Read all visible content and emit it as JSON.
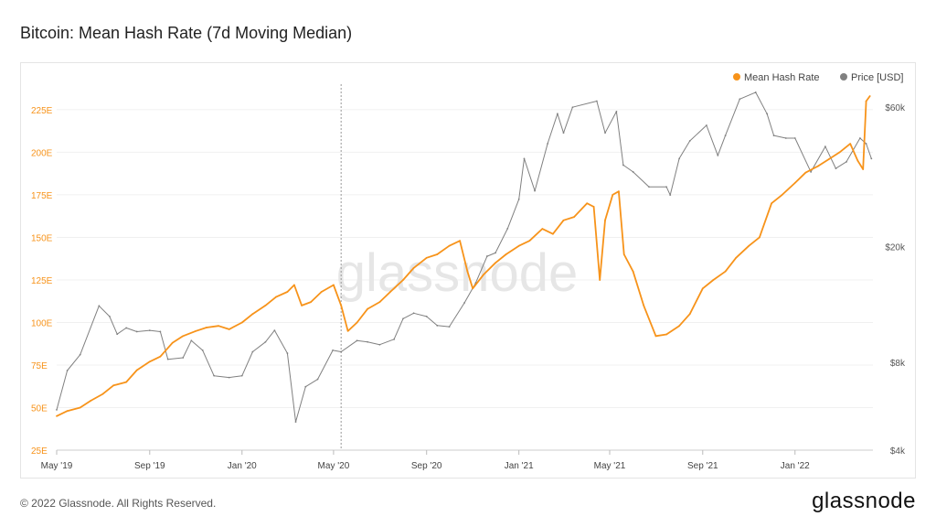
{
  "title": "Bitcoin: Mean Hash Rate (7d Moving Median)",
  "watermark": "glassnode",
  "footer": {
    "copyright": "© 2022 Glassnode. All Rights Reserved.",
    "logo": "glassnode"
  },
  "colors": {
    "hash": "#f7931a",
    "price": "#808080",
    "grid": "#f0f0f0"
  },
  "chart_data": {
    "type": "line",
    "xlabel": "",
    "ylabel": "",
    "x_ticks": [
      "May '19",
      "Sep '19",
      "Jan '20",
      "May '20",
      "Sep '20",
      "Jan '21",
      "May '21",
      "Sep '21",
      "Jan '22"
    ],
    "y_left_ticks": [
      "25E",
      "50E",
      "75E",
      "100E",
      "125E",
      "150E",
      "175E",
      "200E",
      "225E"
    ],
    "y_right_ticks": [
      "$4k",
      "$8k",
      "$20k",
      "$60k"
    ],
    "y_right_scale": "log",
    "ylim_left": [
      25,
      240
    ],
    "ylim_right": [
      4000,
      72000
    ],
    "legend_position": "top-right",
    "annotation_date": "2020-05-11",
    "series": [
      {
        "name": "Mean Hash Rate",
        "axis": "left",
        "points": [
          [
            "2019-05-01",
            45
          ],
          [
            "2019-05-15",
            48
          ],
          [
            "2019-06-01",
            50
          ],
          [
            "2019-06-15",
            54
          ],
          [
            "2019-07-01",
            58
          ],
          [
            "2019-07-15",
            63
          ],
          [
            "2019-08-01",
            65
          ],
          [
            "2019-08-15",
            72
          ],
          [
            "2019-09-01",
            77
          ],
          [
            "2019-09-15",
            80
          ],
          [
            "2019-10-01",
            88
          ],
          [
            "2019-10-15",
            92
          ],
          [
            "2019-11-01",
            95
          ],
          [
            "2019-11-15",
            97
          ],
          [
            "2019-12-01",
            98
          ],
          [
            "2019-12-15",
            96
          ],
          [
            "2020-01-01",
            100
          ],
          [
            "2020-01-15",
            105
          ],
          [
            "2020-02-01",
            110
          ],
          [
            "2020-02-15",
            115
          ],
          [
            "2020-03-01",
            118
          ],
          [
            "2020-03-10",
            122
          ],
          [
            "2020-03-20",
            110
          ],
          [
            "2020-04-01",
            112
          ],
          [
            "2020-04-15",
            118
          ],
          [
            "2020-05-01",
            122
          ],
          [
            "2020-05-11",
            110
          ],
          [
            "2020-05-20",
            95
          ],
          [
            "2020-06-01",
            100
          ],
          [
            "2020-06-15",
            108
          ],
          [
            "2020-07-01",
            112
          ],
          [
            "2020-07-15",
            118
          ],
          [
            "2020-08-01",
            125
          ],
          [
            "2020-08-15",
            132
          ],
          [
            "2020-09-01",
            138
          ],
          [
            "2020-09-15",
            140
          ],
          [
            "2020-10-01",
            145
          ],
          [
            "2020-10-15",
            148
          ],
          [
            "2020-10-25",
            130
          ],
          [
            "2020-11-01",
            120
          ],
          [
            "2020-11-15",
            128
          ],
          [
            "2020-12-01",
            135
          ],
          [
            "2020-12-15",
            140
          ],
          [
            "2021-01-01",
            145
          ],
          [
            "2021-01-15",
            148
          ],
          [
            "2021-02-01",
            155
          ],
          [
            "2021-02-15",
            152
          ],
          [
            "2021-03-01",
            160
          ],
          [
            "2021-03-15",
            162
          ],
          [
            "2021-04-01",
            170
          ],
          [
            "2021-04-10",
            168
          ],
          [
            "2021-04-18",
            125
          ],
          [
            "2021-04-25",
            160
          ],
          [
            "2021-05-05",
            175
          ],
          [
            "2021-05-13",
            177
          ],
          [
            "2021-05-20",
            140
          ],
          [
            "2021-06-01",
            130
          ],
          [
            "2021-06-15",
            110
          ],
          [
            "2021-07-01",
            92
          ],
          [
            "2021-07-15",
            93
          ],
          [
            "2021-08-01",
            98
          ],
          [
            "2021-08-15",
            105
          ],
          [
            "2021-09-01",
            120
          ],
          [
            "2021-09-15",
            125
          ],
          [
            "2021-10-01",
            130
          ],
          [
            "2021-10-15",
            138
          ],
          [
            "2021-11-01",
            145
          ],
          [
            "2021-11-15",
            150
          ],
          [
            "2021-12-01",
            170
          ],
          [
            "2021-12-15",
            175
          ],
          [
            "2022-01-01",
            182
          ],
          [
            "2022-01-15",
            188
          ],
          [
            "2022-02-01",
            192
          ],
          [
            "2022-02-15",
            196
          ],
          [
            "2022-03-01",
            200
          ],
          [
            "2022-03-15",
            205
          ],
          [
            "2022-03-25",
            195
          ],
          [
            "2022-04-01",
            190
          ],
          [
            "2022-04-05",
            230
          ],
          [
            "2022-04-10",
            233
          ]
        ]
      },
      {
        "name": "Price [USD]",
        "axis": "right",
        "points": [
          [
            "2019-05-01",
            5500
          ],
          [
            "2019-05-15",
            7500
          ],
          [
            "2019-06-01",
            8500
          ],
          [
            "2019-06-26",
            12500
          ],
          [
            "2019-07-10",
            11500
          ],
          [
            "2019-07-20",
            10000
          ],
          [
            "2019-08-01",
            10500
          ],
          [
            "2019-08-15",
            10200
          ],
          [
            "2019-09-01",
            10300
          ],
          [
            "2019-09-15",
            10200
          ],
          [
            "2019-09-25",
            8200
          ],
          [
            "2019-10-15",
            8300
          ],
          [
            "2019-10-26",
            9500
          ],
          [
            "2019-11-10",
            8800
          ],
          [
            "2019-11-25",
            7200
          ],
          [
            "2019-12-15",
            7100
          ],
          [
            "2020-01-01",
            7200
          ],
          [
            "2020-01-15",
            8700
          ],
          [
            "2020-02-01",
            9400
          ],
          [
            "2020-02-13",
            10300
          ],
          [
            "2020-03-01",
            8600
          ],
          [
            "2020-03-12",
            5000
          ],
          [
            "2020-03-25",
            6600
          ],
          [
            "2020-04-10",
            7000
          ],
          [
            "2020-04-30",
            8800
          ],
          [
            "2020-05-11",
            8700
          ],
          [
            "2020-06-01",
            9500
          ],
          [
            "2020-06-15",
            9400
          ],
          [
            "2020-07-01",
            9200
          ],
          [
            "2020-07-20",
            9600
          ],
          [
            "2020-08-01",
            11300
          ],
          [
            "2020-08-15",
            11800
          ],
          [
            "2020-09-01",
            11500
          ],
          [
            "2020-09-15",
            10700
          ],
          [
            "2020-10-01",
            10600
          ],
          [
            "2020-10-21",
            12800
          ],
          [
            "2020-11-05",
            15000
          ],
          [
            "2020-11-20",
            18500
          ],
          [
            "2020-12-01",
            19000
          ],
          [
            "2020-12-17",
            23000
          ],
          [
            "2021-01-01",
            29000
          ],
          [
            "2021-01-08",
            40000
          ],
          [
            "2021-01-22",
            31000
          ],
          [
            "2021-02-08",
            45000
          ],
          [
            "2021-02-21",
            57000
          ],
          [
            "2021-03-01",
            49000
          ],
          [
            "2021-03-13",
            60000
          ],
          [
            "2021-04-14",
            63000
          ],
          [
            "2021-04-25",
            49000
          ],
          [
            "2021-05-10",
            58000
          ],
          [
            "2021-05-19",
            38000
          ],
          [
            "2021-06-01",
            36000
          ],
          [
            "2021-06-22",
            32000
          ],
          [
            "2021-07-15",
            32000
          ],
          [
            "2021-07-20",
            30000
          ],
          [
            "2021-08-01",
            40000
          ],
          [
            "2021-08-15",
            46000
          ],
          [
            "2021-09-06",
            52000
          ],
          [
            "2021-09-21",
            41000
          ],
          [
            "2021-10-01",
            48000
          ],
          [
            "2021-10-20",
            64000
          ],
          [
            "2021-11-10",
            67500
          ],
          [
            "2021-11-25",
            57000
          ],
          [
            "2021-12-04",
            48000
          ],
          [
            "2021-12-20",
            47000
          ],
          [
            "2022-01-01",
            47000
          ],
          [
            "2022-01-22",
            36000
          ],
          [
            "2022-02-10",
            44000
          ],
          [
            "2022-02-24",
            37000
          ],
          [
            "2022-03-10",
            39000
          ],
          [
            "2022-03-28",
            47000
          ],
          [
            "2022-04-05",
            45000
          ],
          [
            "2022-04-12",
            40000
          ]
        ]
      }
    ]
  }
}
